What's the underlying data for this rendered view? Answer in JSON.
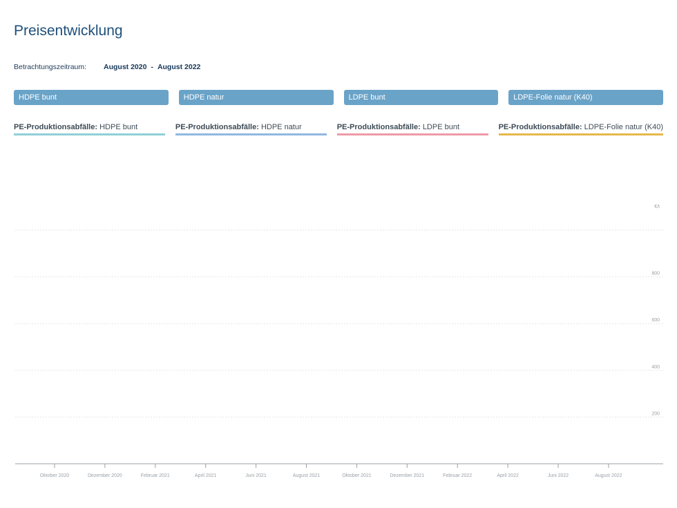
{
  "page": {
    "title": "Preisentwicklung"
  },
  "period": {
    "label": "Betrachtungszeitraum:",
    "from": "August 2020",
    "separator": "-",
    "to": "August 2022"
  },
  "tabs": [
    {
      "label": "HDPE bunt"
    },
    {
      "label": "HDPE natur"
    },
    {
      "label": "LDPE bunt"
    },
    {
      "label": "LDPE-Folie natur (K40)"
    }
  ],
  "legend": [
    {
      "prefix": "PE-Produktionsabfälle:",
      "name": "HDPE bunt",
      "color": "#8fcfd6"
    },
    {
      "prefix": "PE-Produktionsabfälle:",
      "name": "HDPE natur",
      "color": "#8fb8e0"
    },
    {
      "prefix": "PE-Produktionsabfälle:",
      "name": "LDPE bunt",
      "color": "#ee9aa8"
    },
    {
      "prefix": "PE-Produktionsabfälle:",
      "name": "LDPE-Folie natur (K40)",
      "color": "#e6b84a"
    }
  ],
  "chart_data": {
    "type": "line",
    "title": "",
    "xlabel": "",
    "ylabel": "€/t",
    "ylim": [
      0,
      1100
    ],
    "yticks": [
      200,
      400,
      600,
      800
    ],
    "grid": true,
    "x_ticks": [
      "Oktober 2020",
      "Dezember 2020",
      "Februar 2021",
      "April 2021",
      "Juni 2021",
      "August 2021",
      "Oktober 2021",
      "Dezember 2021",
      "Februar 2022",
      "April 2022",
      "Juni 2022",
      "August 2022"
    ],
    "series": []
  }
}
